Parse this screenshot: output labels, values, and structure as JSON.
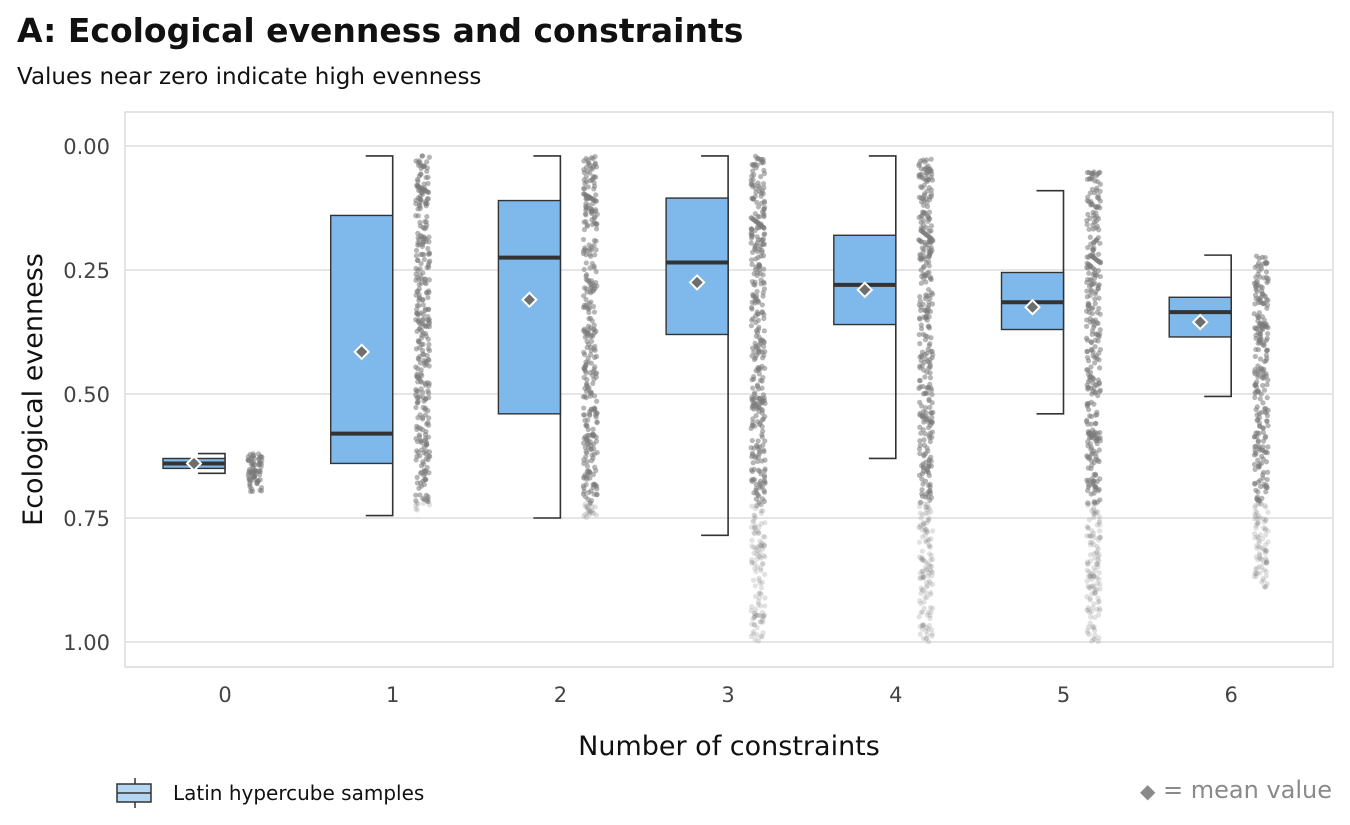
{
  "title": "A: Ecological evenness and constraints",
  "subtitle": "Values near zero indicate high evenness",
  "legend": {
    "label": "Latin hypercube samples"
  },
  "mean_note": {
    "symbol": "◆",
    "text": "= mean value"
  },
  "colors": {
    "box_fill": "#7fb8ea",
    "box_stroke": "#333333",
    "points": "#7a7a7a",
    "grid": "#e6e6e6",
    "panel_border": "#c8c8c8",
    "mean_fill": "#6e6e6e"
  },
  "chart_data": {
    "type": "box",
    "xlabel": "Number of constraints",
    "ylabel": "Ecological evenness",
    "y_reversed": true,
    "ylim": [
      0,
      1.07
    ],
    "xlim": [
      -0.6,
      6.6
    ],
    "y_ticks": [
      "0.00",
      "0.25",
      "0.50",
      "0.75",
      "1.00"
    ],
    "categories": [
      "0",
      "1",
      "2",
      "3",
      "4",
      "5",
      "6"
    ],
    "series": [
      {
        "boxes": [
          {
            "x": 0,
            "whisker_low": 0.62,
            "q1": 0.63,
            "median": 0.64,
            "q3": 0.65,
            "whisker_high": 0.66,
            "mean": 0.64
          },
          {
            "x": 1,
            "whisker_low": 0.02,
            "q1": 0.14,
            "median": 0.58,
            "q3": 0.64,
            "whisker_high": 0.745,
            "mean": 0.415
          },
          {
            "x": 2,
            "whisker_low": 0.02,
            "q1": 0.11,
            "median": 0.225,
            "q3": 0.54,
            "whisker_high": 0.75,
            "mean": 0.31
          },
          {
            "x": 3,
            "whisker_low": 0.02,
            "q1": 0.105,
            "median": 0.235,
            "q3": 0.38,
            "whisker_high": 0.785,
            "mean": 0.275
          },
          {
            "x": 4,
            "whisker_low": 0.02,
            "q1": 0.18,
            "median": 0.28,
            "q3": 0.36,
            "whisker_high": 0.63,
            "mean": 0.29
          },
          {
            "x": 5,
            "whisker_low": 0.09,
            "q1": 0.255,
            "median": 0.315,
            "q3": 0.37,
            "whisker_high": 0.54,
            "mean": 0.325
          },
          {
            "x": 6,
            "whisker_low": 0.22,
            "q1": 0.305,
            "median": 0.335,
            "q3": 0.385,
            "whisker_high": 0.505,
            "mean": 0.355
          }
        ]
      }
    ],
    "points_range": [
      {
        "x": 0,
        "min": 0.62,
        "max": 0.7
      },
      {
        "x": 1,
        "min": 0.02,
        "max": 0.74
      },
      {
        "x": 2,
        "min": 0.02,
        "max": 0.75
      },
      {
        "x": 3,
        "min": 0.02,
        "max": 1.0
      },
      {
        "x": 4,
        "min": 0.02,
        "max": 1.0
      },
      {
        "x": 5,
        "min": 0.05,
        "max": 1.0
      },
      {
        "x": 6,
        "min": 0.22,
        "max": 0.89
      }
    ]
  }
}
